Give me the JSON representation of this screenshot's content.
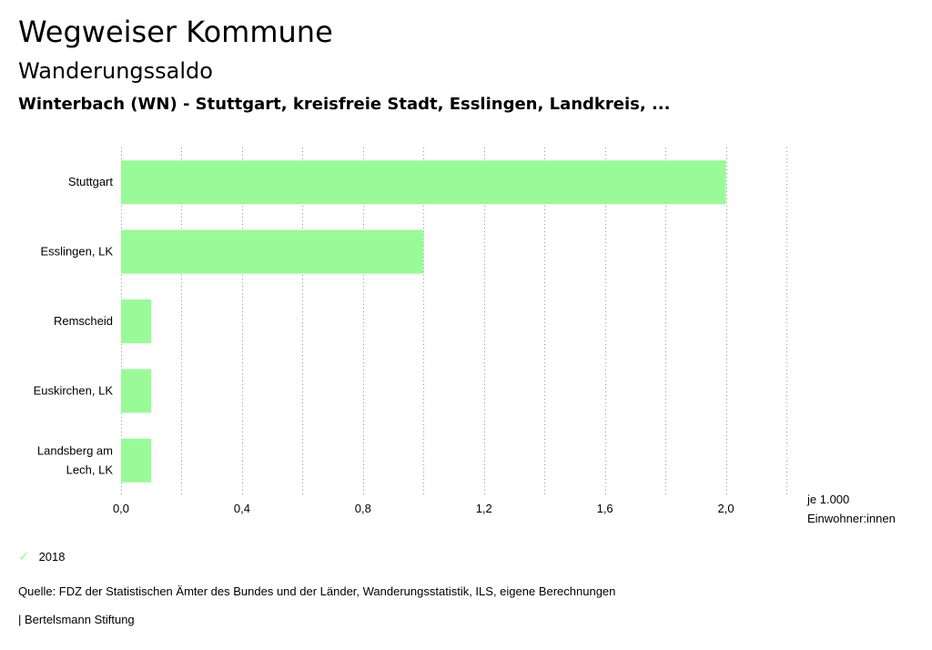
{
  "header": {
    "title": "Wegweiser Kommune",
    "subtitle": "Wanderungssaldo",
    "region": "Winterbach (WN) - Stuttgart, kreisfreie Stadt, Esslingen, Landkreis, ..."
  },
  "chart_data": {
    "type": "bar",
    "orientation": "horizontal",
    "categories": [
      "Stuttgart",
      "Esslingen, LK",
      "Remscheid",
      "Euskirchen, LK",
      "Landsberg am Lech, LK"
    ],
    "category_lines": [
      [
        "Stuttgart"
      ],
      [
        "Esslingen, LK"
      ],
      [
        "Remscheid"
      ],
      [
        "Euskirchen, LK"
      ],
      [
        "Landsberg am",
        "Lech, LK"
      ]
    ],
    "series": [
      {
        "name": "2018",
        "values": [
          2.0,
          1.0,
          0.1,
          0.1,
          0.1
        ],
        "color": "#98fb98"
      }
    ],
    "xlim": [
      0,
      2.2
    ],
    "x_ticks": [
      0.0,
      0.4,
      0.8,
      1.2,
      1.6,
      2.0
    ],
    "x_tick_labels": [
      "0,0",
      "0,4",
      "0,8",
      "1,2",
      "1,6",
      "2,0"
    ],
    "grid": true,
    "xlabel_lines": [
      "je 1.000",
      "Einwohner:innen"
    ],
    "legend_position": "bottom-left"
  },
  "footer": {
    "legend_label": "2018",
    "legend_icon": "check-icon",
    "source": "Quelle: FDZ der Statistischen Ämter des Bundes und der Länder, Wanderungsstatistik, ILS, eigene Berechnungen",
    "brand": "| Bertelsmann Stiftung"
  }
}
